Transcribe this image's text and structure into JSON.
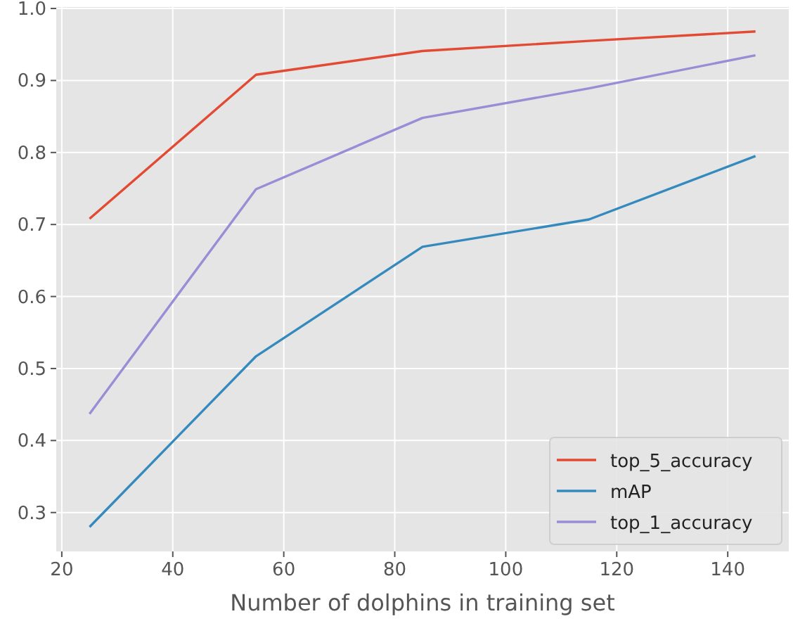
{
  "chart_data": {
    "type": "line",
    "xlabel": "Number of dolphins in training set",
    "x": [
      25,
      55,
      85,
      115,
      145
    ],
    "series": [
      {
        "name": "top_5_accuracy",
        "color": "#e24a33",
        "values": [
          0.708,
          0.908,
          0.941,
          0.955,
          0.968
        ]
      },
      {
        "name": "mAP",
        "color": "#348abd",
        "values": [
          0.28,
          0.517,
          0.669,
          0.707,
          0.795
        ]
      },
      {
        "name": "top_1_accuracy",
        "color": "#988ed5",
        "values": [
          0.437,
          0.749,
          0.848,
          0.889,
          0.935
        ]
      }
    ],
    "xlim": [
      19,
      151
    ],
    "xticks": [
      20,
      40,
      60,
      80,
      100,
      120,
      140
    ],
    "ylim": [
      0.246,
      1.002
    ],
    "yticks": [
      {
        "value": 0.3,
        "label": "0.3"
      },
      {
        "value": 0.4,
        "label": "0.4"
      },
      {
        "value": 0.5,
        "label": "0.5"
      },
      {
        "value": 0.6,
        "label": "0.6"
      },
      {
        "value": 0.7,
        "label": "0.7"
      },
      {
        "value": 0.8,
        "label": "0.8"
      },
      {
        "value": 0.9,
        "label": "0.9"
      },
      {
        "value": 1.0,
        "label": "1.0"
      }
    ],
    "grid": true,
    "legend": "bottom right",
    "line_style": "solid",
    "marker": "none"
  }
}
